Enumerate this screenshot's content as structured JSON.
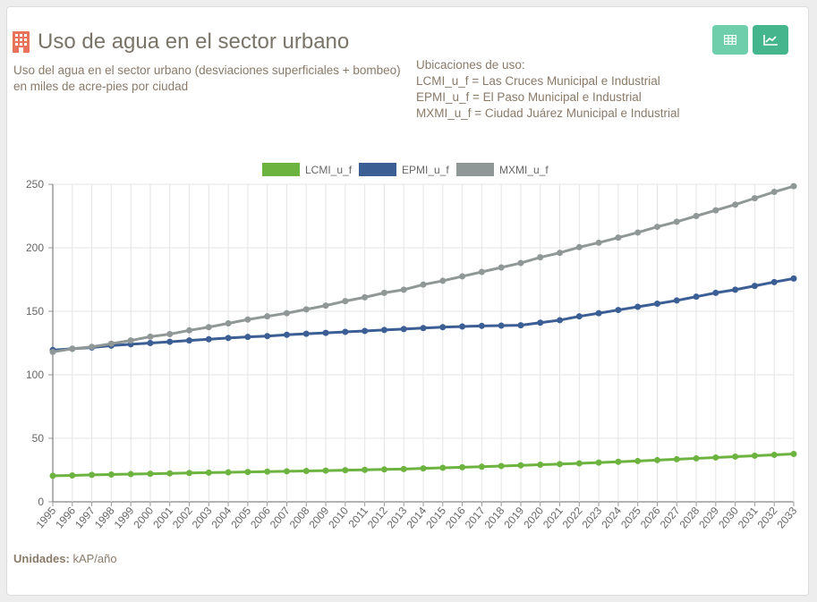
{
  "header": {
    "title": "Uso de agua en el sector urbano",
    "subtitle": "Uso del agua en el sector urbano (desviaciones superficiales + bombeo) en miles de acre-pies por ciudad",
    "locations_heading": "Ubicaciones de uso:",
    "locations": [
      "LCMI_u_f = Las Cruces Municipal e Industrial",
      "EPMI_u_f = El Paso Municipal e Industrial",
      "MXMI_u_f = Ciudad Juárez Municipal e Industrial"
    ]
  },
  "toolbar": {
    "table_icon": "table-icon",
    "chart_icon": "line-chart-icon"
  },
  "footer": {
    "units_label": "Unidades:",
    "units_value": "kAP/año"
  },
  "colors": {
    "accent_light": "#6fcfac",
    "accent_dark": "#45b58e",
    "title_icon": "#e8735a"
  },
  "chart_data": {
    "type": "line",
    "title": "",
    "xlabel": "",
    "ylabel": "",
    "ylim": [
      0,
      250
    ],
    "yticks": [
      0,
      50,
      100,
      150,
      200,
      250
    ],
    "grid": true,
    "legend_position": "top-center",
    "categories": [
      "1995",
      "1996",
      "1997",
      "1998",
      "1999",
      "2000",
      "2001",
      "2002",
      "2003",
      "2004",
      "2005",
      "2006",
      "2007",
      "2008",
      "2009",
      "2010",
      "2011",
      "2012",
      "2013",
      "2014",
      "2015",
      "2016",
      "2017",
      "2018",
      "2019",
      "2020",
      "2021",
      "2022",
      "2023",
      "2024",
      "2025",
      "2026",
      "2027",
      "2028",
      "2029",
      "2030",
      "2031",
      "2032",
      "2033"
    ],
    "series": [
      {
        "name": "LCMI_u_f",
        "color": "#6db33f",
        "values": [
          20.5,
          20.8,
          21.2,
          21.5,
          21.8,
          22.1,
          22.4,
          22.7,
          23.0,
          23.2,
          23.5,
          23.8,
          24.0,
          24.3,
          24.6,
          24.9,
          25.2,
          25.5,
          25.8,
          26.3,
          26.8,
          27.2,
          27.6,
          28.2,
          28.7,
          29.2,
          29.7,
          30.3,
          30.9,
          31.5,
          32.1,
          32.8,
          33.5,
          34.2,
          34.9,
          35.6,
          36.3,
          37.0,
          37.7
        ]
      },
      {
        "name": "EPMI_u_f",
        "color": "#3b5e95",
        "values": [
          119.5,
          120.5,
          121.5,
          123.0,
          124.0,
          125.0,
          126.0,
          127.0,
          128.0,
          129.0,
          129.8,
          130.5,
          131.5,
          132.3,
          133.0,
          133.8,
          134.5,
          135.3,
          136.0,
          136.8,
          137.5,
          138.0,
          138.5,
          138.7,
          139.0,
          141.0,
          143.0,
          146.0,
          148.5,
          151.0,
          153.5,
          156.0,
          158.5,
          161.5,
          164.5,
          167.0,
          170.0,
          173.0,
          175.8
        ]
      },
      {
        "name": "MXMI_u_f",
        "color": "#8f9896",
        "values": [
          118.0,
          120.5,
          122.0,
          124.5,
          127.0,
          130.0,
          132.0,
          135.0,
          137.5,
          140.5,
          143.5,
          146.0,
          148.5,
          151.5,
          154.5,
          158.0,
          161.0,
          164.5,
          167.0,
          171.0,
          174.0,
          177.5,
          181.0,
          184.5,
          188.0,
          192.5,
          196.0,
          200.5,
          204.0,
          208.0,
          212.0,
          216.5,
          220.5,
          225.0,
          229.5,
          234.0,
          239.0,
          244.0,
          248.5
        ]
      }
    ]
  }
}
